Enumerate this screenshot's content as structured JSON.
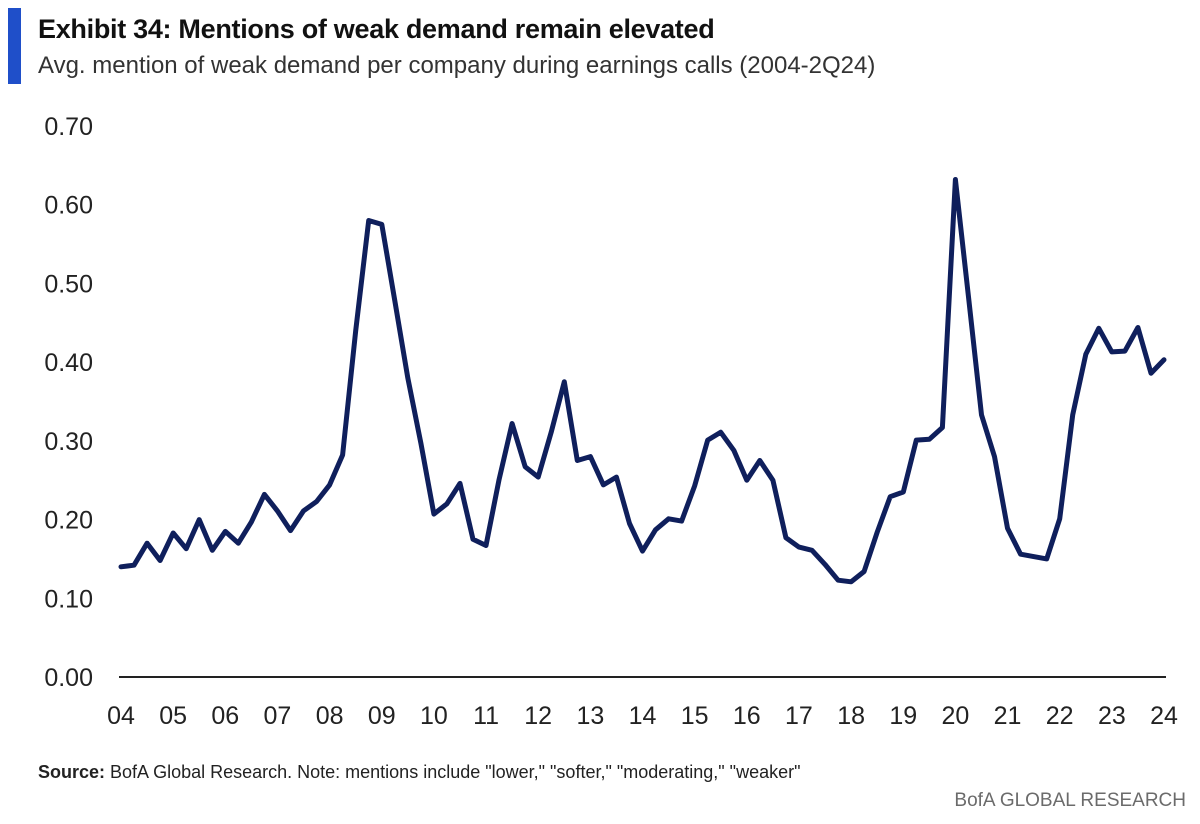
{
  "title": "Exhibit 34: Mentions of weak demand remain elevated",
  "subtitle": "Avg. mention of weak demand per company during earnings calls (2004-2Q24)",
  "source": {
    "label": "Source:",
    "text": " BofA Global Research. Note: mentions include \"lower,\" \"softer,\" \"moderating,\" \"weaker\""
  },
  "brand": "BofA GLOBAL RESEARCH",
  "colors": {
    "accent": "#1f4fc9",
    "line": "#0f1f5c",
    "axis": "#222222"
  },
  "chart_data": {
    "type": "line",
    "title": "Exhibit 34: Mentions of weak demand remain elevated",
    "subtitle": "Avg. mention of weak demand per company during earnings calls (2004-2Q24)",
    "xlabel": "",
    "ylabel": "",
    "ylim": [
      0,
      0.7
    ],
    "xlim": [
      2004,
      2024
    ],
    "grid": false,
    "legend": "none",
    "y_ticks": [
      "0.00",
      "0.10",
      "0.20",
      "0.30",
      "0.40",
      "0.50",
      "0.60",
      "0.70"
    ],
    "x_ticks": [
      "04",
      "05",
      "06",
      "07",
      "08",
      "09",
      "10",
      "11",
      "12",
      "13",
      "14",
      "15",
      "16",
      "17",
      "18",
      "19",
      "20",
      "21",
      "22",
      "23",
      "24"
    ],
    "series": [
      {
        "values": [
          0.14,
          0.142,
          0.17,
          0.148,
          0.183,
          0.163,
          0.2,
          0.161,
          0.185,
          0.17,
          0.197,
          0.232,
          0.211,
          0.186,
          0.211,
          0.223,
          0.244,
          0.282,
          0.44,
          0.58,
          0.575,
          0.478,
          0.38,
          0.297,
          0.207,
          0.22,
          0.246,
          0.175,
          0.167,
          0.251,
          0.322,
          0.267,
          0.254,
          0.311,
          0.375,
          0.275,
          0.28,
          0.244,
          0.254,
          0.195,
          0.16,
          0.187,
          0.201,
          0.198,
          0.243,
          0.301,
          0.311,
          0.288,
          0.25,
          0.275,
          0.25,
          0.177,
          0.165,
          0.161,
          0.143,
          0.123,
          0.121,
          0.134,
          0.184,
          0.229,
          0.235,
          0.301,
          0.302,
          0.317,
          0.632,
          0.484,
          0.333,
          0.28,
          0.189,
          0.156,
          0.153,
          0.15,
          0.201,
          0.333,
          0.41,
          0.443,
          0.413,
          0.414,
          0.444,
          0.386,
          0.403
        ]
      }
    ]
  }
}
